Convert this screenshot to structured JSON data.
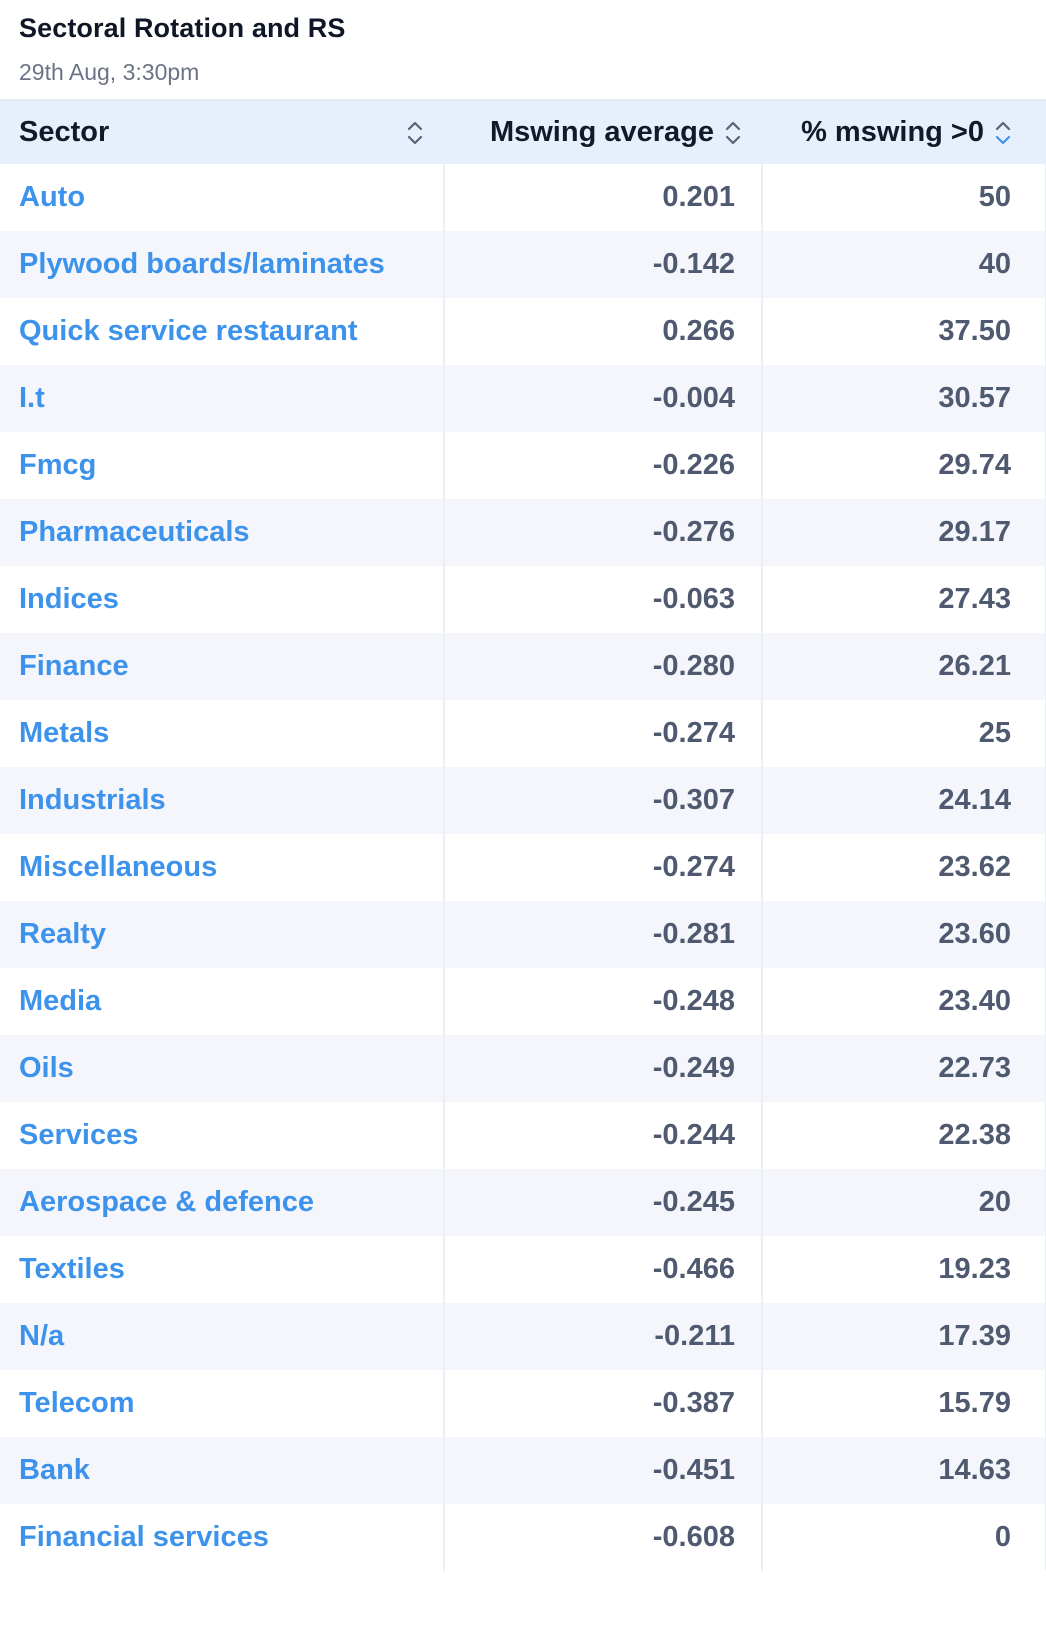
{
  "widget": {
    "title": "Sectoral Rotation and RS",
    "subtitle": "29th Aug, 3:30pm"
  },
  "table": {
    "columns": [
      {
        "label": "Sector",
        "icon": "sort-icon"
      },
      {
        "label": "Mswing average",
        "icon": "sort-icon"
      },
      {
        "label": "% mswing >0",
        "icon": "sort-icon"
      }
    ],
    "rows": [
      {
        "sector": "Auto",
        "avg": "0.201",
        "pct": "50"
      },
      {
        "sector": "Plywood boards/laminates",
        "avg": "-0.142",
        "pct": "40"
      },
      {
        "sector": "Quick service restaurant",
        "avg": "0.266",
        "pct": "37.50"
      },
      {
        "sector": "I.t",
        "avg": "-0.004",
        "pct": "30.57"
      },
      {
        "sector": "Fmcg",
        "avg": "-0.226",
        "pct": "29.74"
      },
      {
        "sector": "Pharmaceuticals",
        "avg": "-0.276",
        "pct": "29.17"
      },
      {
        "sector": "Indices",
        "avg": "-0.063",
        "pct": "27.43"
      },
      {
        "sector": "Finance",
        "avg": "-0.280",
        "pct": "26.21"
      },
      {
        "sector": "Metals",
        "avg": "-0.274",
        "pct": "25"
      },
      {
        "sector": "Industrials",
        "avg": "-0.307",
        "pct": "24.14"
      },
      {
        "sector": "Miscellaneous",
        "avg": "-0.274",
        "pct": "23.62"
      },
      {
        "sector": "Realty",
        "avg": "-0.281",
        "pct": "23.60"
      },
      {
        "sector": "Media",
        "avg": "-0.248",
        "pct": "23.40"
      },
      {
        "sector": "Oils",
        "avg": "-0.249",
        "pct": "22.73"
      },
      {
        "sector": "Services",
        "avg": "-0.244",
        "pct": "22.38"
      },
      {
        "sector": "Aerospace & defence",
        "avg": "-0.245",
        "pct": "20"
      },
      {
        "sector": "Textiles",
        "avg": "-0.466",
        "pct": "19.23"
      },
      {
        "sector": "N/a",
        "avg": "-0.211",
        "pct": "17.39"
      },
      {
        "sector": "Telecom",
        "avg": "-0.387",
        "pct": "15.79"
      },
      {
        "sector": "Bank",
        "avg": "-0.451",
        "pct": "14.63"
      },
      {
        "sector": "Financial services",
        "avg": "-0.608",
        "pct": "0"
      }
    ]
  },
  "colors": {
    "link": "#3d93ec",
    "header_bg": "#e6f0fc",
    "stripe_bg": "#f4f6fb",
    "number_text": "#4f5a70"
  }
}
